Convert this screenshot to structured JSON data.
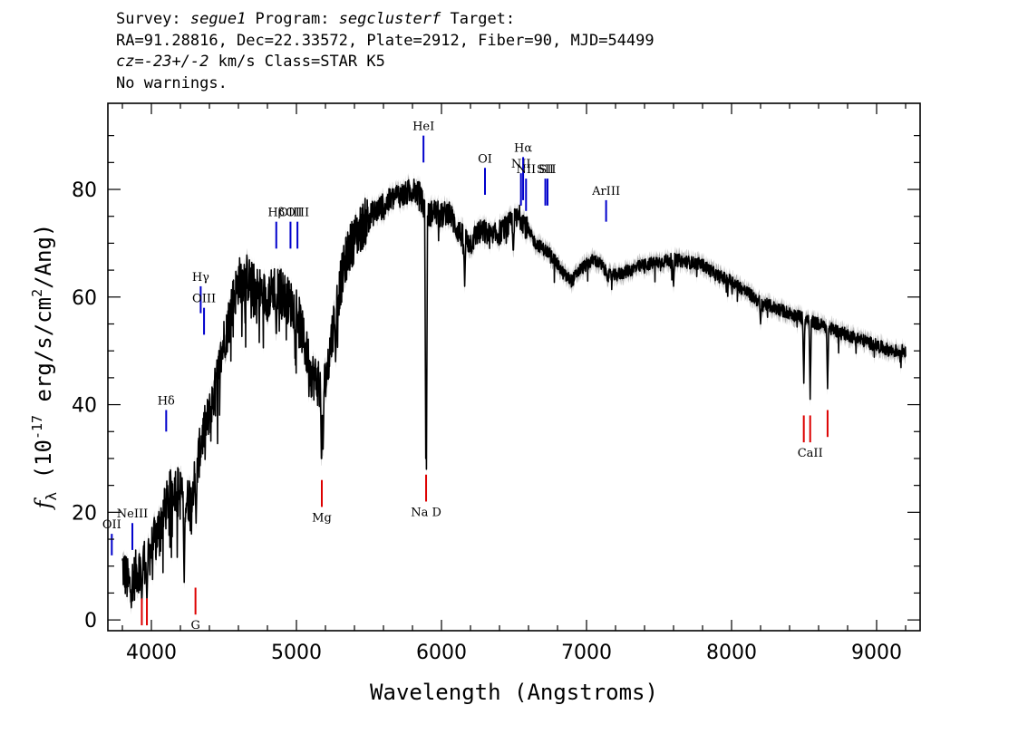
{
  "header": {
    "survey_label": "Survey: ",
    "survey": "segue1",
    "program_label": " Program: ",
    "program": "segclusterf",
    "target_label": " Target:",
    "line2": "RA=91.28816, Dec=22.33572, Plate=2912, Fiber=90, MJD=54499",
    "cz_label": "cz",
    "cz_eq": "=",
    "cz_value": "-23+/-2",
    "cz_tail": " km/s Class=STAR K5",
    "line4": "No warnings."
  },
  "colors": {
    "emission": "#0000cc",
    "absorption": "#dd0000",
    "spectrum": "#000000",
    "error": "#aaaaaa"
  },
  "chart_data": {
    "type": "line",
    "xlabel": "Wavelength (Angstroms)",
    "ylabel": "f_λ (10^-17 erg/s/cm^2/Ang)",
    "ylabel_parts": {
      "f": "f",
      "lambda": "λ",
      "open": " (10",
      "exp": "-17",
      "mid": " erg/s/cm",
      "exp2": "2",
      "close": "/Ang)"
    },
    "xlim": [
      3700,
      9300
    ],
    "ylim": [
      -2,
      96
    ],
    "xticks": [
      4000,
      5000,
      6000,
      7000,
      8000,
      9000
    ],
    "yticks": [
      0,
      20,
      40,
      60,
      80
    ],
    "spectrum": [
      [
        3800,
        10
      ],
      [
        3850,
        6
      ],
      [
        3900,
        9
      ],
      [
        3950,
        11
      ],
      [
        4000,
        13
      ],
      [
        4050,
        17
      ],
      [
        4100,
        21
      ],
      [
        4150,
        25
      ],
      [
        4200,
        24
      ],
      [
        4250,
        22
      ],
      [
        4300,
        26
      ],
      [
        4350,
        34
      ],
      [
        4400,
        38
      ],
      [
        4450,
        44
      ],
      [
        4500,
        52
      ],
      [
        4550,
        58
      ],
      [
        4600,
        63
      ],
      [
        4650,
        64
      ],
      [
        4700,
        62
      ],
      [
        4750,
        61
      ],
      [
        4800,
        60
      ],
      [
        4850,
        62
      ],
      [
        4900,
        61
      ],
      [
        4950,
        59
      ],
      [
        5000,
        58
      ],
      [
        5050,
        52
      ],
      [
        5100,
        46
      ],
      [
        5150,
        44
      ],
      [
        5200,
        44
      ],
      [
        5250,
        54
      ],
      [
        5300,
        62
      ],
      [
        5350,
        68
      ],
      [
        5400,
        71
      ],
      [
        5450,
        73
      ],
      [
        5500,
        75
      ],
      [
        5550,
        76
      ],
      [
        5600,
        77
      ],
      [
        5650,
        78
      ],
      [
        5700,
        79
      ],
      [
        5750,
        79
      ],
      [
        5800,
        80
      ],
      [
        5850,
        79
      ],
      [
        5900,
        75
      ],
      [
        5950,
        76
      ],
      [
        6000,
        75
      ],
      [
        6050,
        76
      ],
      [
        6100,
        73
      ],
      [
        6150,
        71
      ],
      [
        6200,
        70
      ],
      [
        6250,
        72
      ],
      [
        6300,
        72
      ],
      [
        6350,
        71
      ],
      [
        6400,
        72
      ],
      [
        6450,
        73
      ],
      [
        6500,
        74
      ],
      [
        6550,
        75
      ],
      [
        6600,
        72
      ],
      [
        6650,
        70
      ],
      [
        6700,
        69
      ],
      [
        6750,
        68
      ],
      [
        6800,
        66
      ],
      [
        6850,
        64
      ],
      [
        6900,
        63
      ],
      [
        6950,
        65
      ],
      [
        7000,
        66
      ],
      [
        7050,
        67
      ],
      [
        7100,
        66
      ],
      [
        7150,
        64
      ],
      [
        7200,
        64
      ],
      [
        7300,
        65
      ],
      [
        7400,
        66
      ],
      [
        7500,
        66.5
      ],
      [
        7600,
        67
      ],
      [
        7700,
        66.5
      ],
      [
        7800,
        66
      ],
      [
        7900,
        64
      ],
      [
        8000,
        63
      ],
      [
        8100,
        61
      ],
      [
        8200,
        59
      ],
      [
        8300,
        58
      ],
      [
        8400,
        57
      ],
      [
        8500,
        56
      ],
      [
        8600,
        55
      ],
      [
        8700,
        54
      ],
      [
        8800,
        53
      ],
      [
        8900,
        52
      ],
      [
        9000,
        51
      ],
      [
        9100,
        50
      ],
      [
        9200,
        50
      ]
    ],
    "absorption_dips": [
      [
        3934,
        3
      ],
      [
        3969,
        3
      ],
      [
        4226,
        7
      ],
      [
        4308,
        18
      ],
      [
        4861,
        52
      ],
      [
        5173,
        28
      ],
      [
        5183,
        30
      ],
      [
        5270,
        48
      ],
      [
        5892,
        30
      ],
      [
        5896,
        28
      ],
      [
        6160,
        62
      ],
      [
        6495,
        68
      ],
      [
        7600,
        62
      ],
      [
        8200,
        55
      ],
      [
        8498,
        44
      ],
      [
        8542,
        41
      ],
      [
        8662,
        43
      ]
    ],
    "emission_lines": [
      {
        "label": "OII",
        "x": 3727,
        "y_top": 16,
        "y_bot": 12
      },
      {
        "label": "NeIII",
        "x": 3869,
        "y_top": 18,
        "y_bot": 13
      },
      {
        "label": "Hδ",
        "x": 4102,
        "y_top": 39,
        "y_bot": 35
      },
      {
        "label": "Hγ",
        "x": 4340,
        "y_top": 62,
        "y_bot": 57
      },
      {
        "label": "OIII",
        "x": 4363,
        "y_top": 58,
        "y_bot": 53
      },
      {
        "label": "Hβ",
        "x": 4861,
        "y_top": 74,
        "y_bot": 69
      },
      {
        "label": "OIII",
        "x": 4959,
        "y_top": 74,
        "y_bot": 69
      },
      {
        "label": "OIII",
        "x": 5007,
        "y_top": 74,
        "y_bot": 69
      },
      {
        "label": "HeI",
        "x": 5876,
        "y_top": 90,
        "y_bot": 85
      },
      {
        "label": "OI",
        "x": 6300,
        "y_top": 84,
        "y_bot": 79
      },
      {
        "label": "NII",
        "x": 6548,
        "y_top": 83,
        "y_bot": 77
      },
      {
        "label": "Hα",
        "x": 6563,
        "y_top": 86,
        "y_bot": 78
      },
      {
        "label": "NII",
        "x": 6583,
        "y_top": 82,
        "y_bot": 76
      },
      {
        "label": "SII",
        "x": 6716,
        "y_top": 82,
        "y_bot": 77
      },
      {
        "label": "SII",
        "x": 6731,
        "y_top": 82,
        "y_bot": 77
      },
      {
        "label": "ArIII",
        "x": 7135,
        "y_top": 78,
        "y_bot": 74
      }
    ],
    "absorption_lines": [
      {
        "label": "",
        "x": 3934,
        "y_top": 4,
        "y_bot": -1
      },
      {
        "label": "",
        "x": 3969,
        "y_top": 4,
        "y_bot": -1
      },
      {
        "label": "G",
        "x": 4304,
        "y_top": 6,
        "y_bot": 1
      },
      {
        "label": "Mg",
        "x": 5175,
        "y_top": 26,
        "y_bot": 21
      },
      {
        "label": "Na D",
        "x": 5894,
        "y_top": 27,
        "y_bot": 22
      },
      {
        "label": "",
        "x": 8498,
        "y_top": 38,
        "y_bot": 33
      },
      {
        "label": "CaII",
        "x": 8542,
        "y_top": 38,
        "y_bot": 33
      },
      {
        "label": "",
        "x": 8662,
        "y_top": 39,
        "y_bot": 34
      }
    ]
  }
}
